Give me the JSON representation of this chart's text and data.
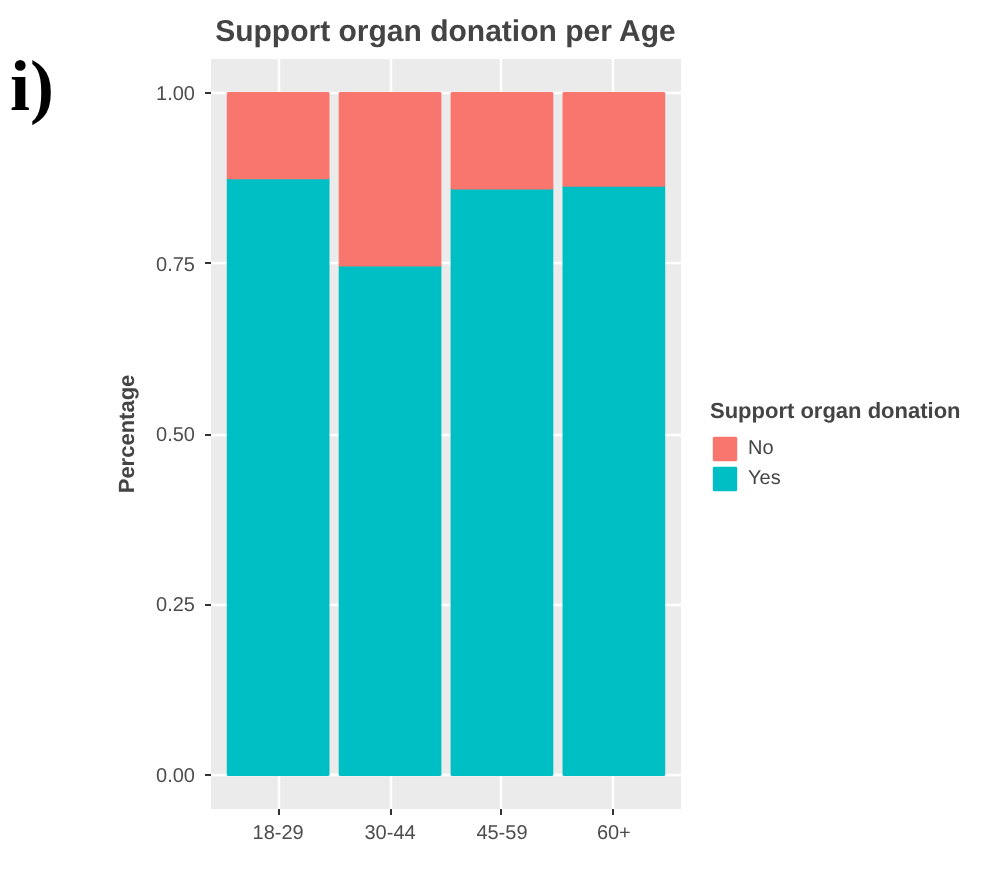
{
  "chart_data": {
    "type": "bar",
    "title": "Support organ donation per Age",
    "ylabel": "Percentage",
    "legend_title": "Support organ donation",
    "annotations": [
      "i)"
    ],
    "categories": [
      "18-29",
      "30-44",
      "45-59",
      "60+"
    ],
    "stacked": true,
    "series": [
      {
        "name": "Yes",
        "color": "#00bfc4",
        "values": [
          0.875,
          0.747,
          0.86,
          0.864
        ]
      },
      {
        "name": "No",
        "color": "#f8766d",
        "values": [
          0.125,
          0.253,
          0.14,
          0.136
        ]
      }
    ],
    "ylim": [
      -0.05,
      1.05
    ],
    "yticks": [
      {
        "value": 0,
        "label": "0.00"
      },
      {
        "value": 0.25,
        "label": "0.25"
      },
      {
        "value": 0.5,
        "label": "0.50"
      },
      {
        "value": 0.75,
        "label": "0.75"
      },
      {
        "value": 1,
        "label": "1.00"
      }
    ],
    "grid": true,
    "legend": "right"
  }
}
